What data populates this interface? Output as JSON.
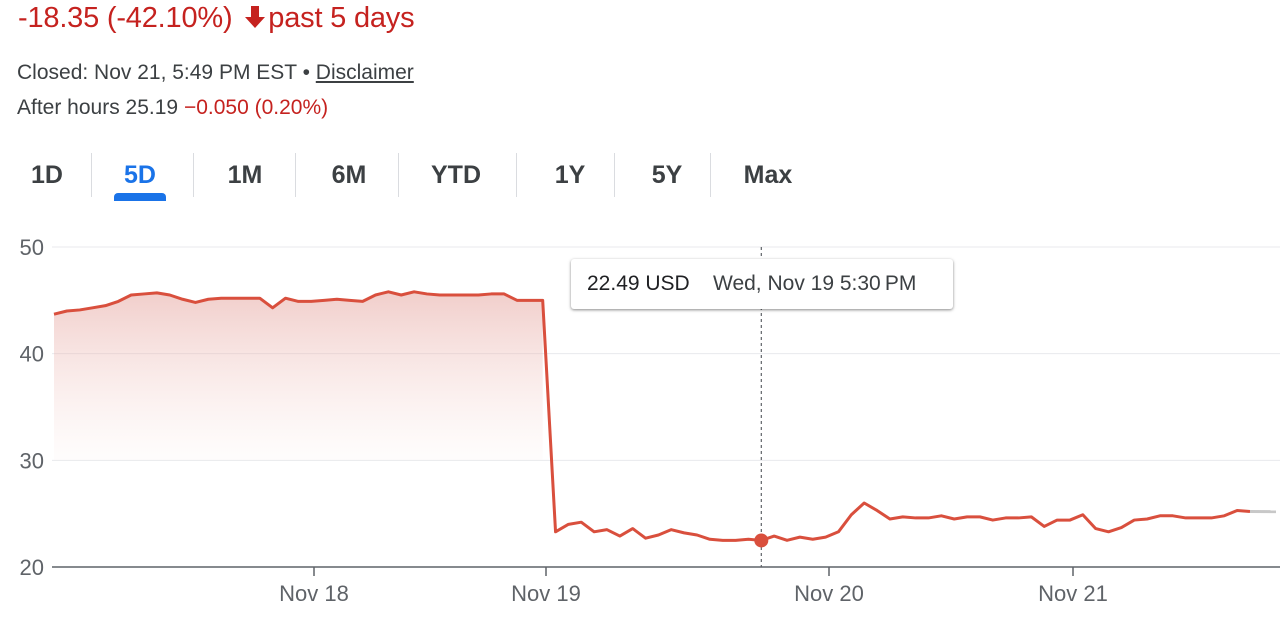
{
  "header": {
    "change_text": "-18.35 (-42.10%)",
    "period_text": "past 5 days",
    "status_text": "Closed: Nov 21, 5:49 PM EST • ",
    "disclaimer_label": "Disclaimer",
    "after_hours_label": "After hours 25.19 ",
    "after_hours_change": "−0.050 (0.20%)",
    "arrow_icon": "arrow-down-icon",
    "negative_color": "#c5221f",
    "accent_color": "#1a73e8"
  },
  "range_tabs": [
    {
      "label": "1D",
      "active": false
    },
    {
      "label": "5D",
      "active": true
    },
    {
      "label": "1M",
      "active": false
    },
    {
      "label": "6M",
      "active": false
    },
    {
      "label": "YTD",
      "active": false
    },
    {
      "label": "1Y",
      "active": false
    },
    {
      "label": "5Y",
      "active": false
    },
    {
      "label": "Max",
      "active": false
    }
  ],
  "tooltip": {
    "value": "22.49 USD",
    "time": "Wed, Nov 19 5:30 PM"
  },
  "chart_data": {
    "type": "line",
    "ylim": [
      20,
      50
    ],
    "y_ticks": [
      50,
      40,
      30,
      20
    ],
    "x_tick_labels": [
      "Nov 18",
      "Nov 19",
      "Nov 20",
      "Nov 21"
    ],
    "grid": true,
    "line_color": "#d94f3d",
    "area_fill": true,
    "series": [
      {
        "values": [
          43.7,
          44.0,
          44.1,
          44.3,
          44.5,
          44.9,
          45.5,
          45.6,
          45.7,
          45.5,
          45.1,
          44.8,
          45.1,
          45.2,
          45.2,
          45.2,
          45.2,
          44.3,
          45.2,
          44.9,
          44.9,
          45.0,
          45.1,
          45.0,
          44.9,
          45.5,
          45.8,
          45.5,
          45.8,
          45.6,
          45.5,
          45.5,
          45.5,
          45.5,
          45.6,
          45.6,
          45.0,
          45.0,
          45.0,
          23.3,
          24.0,
          24.2,
          23.3,
          23.5,
          22.9,
          23.6,
          22.7,
          23.0,
          23.5,
          23.2,
          23.0,
          22.6,
          22.5,
          22.5,
          22.6,
          22.49,
          22.9,
          22.5,
          22.8,
          22.6,
          22.8,
          23.3,
          24.9,
          26.0,
          25.3,
          24.5,
          24.7,
          24.6,
          24.6,
          24.8,
          24.5,
          24.7,
          24.7,
          24.4,
          24.6,
          24.6,
          24.7,
          23.8,
          24.4,
          24.4,
          24.9,
          23.6,
          23.3,
          23.7,
          24.4,
          24.5,
          24.8,
          24.8,
          24.6,
          24.6,
          24.6,
          24.8,
          25.3,
          25.2
        ]
      }
    ],
    "after_hours_color": "#c8c8c8",
    "after_hours_values": [
      25.2,
      25.19
    ],
    "highlight": {
      "value": 22.49
    }
  }
}
